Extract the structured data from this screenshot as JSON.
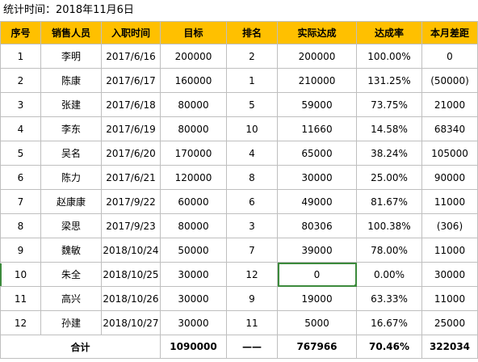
{
  "stat_line": "统计时间：2018年11月6日",
  "headers": [
    "序号",
    "销售人员",
    "入职时间",
    "目标",
    "排名",
    "实际达成",
    "达成率",
    "本月差距"
  ],
  "rows": [
    [
      "1",
      "李明",
      "2017/6/16",
      "200000",
      "2",
      "200000",
      "100.00%",
      "0"
    ],
    [
      "2",
      "陈康",
      "2017/6/17",
      "160000",
      "1",
      "210000",
      "131.25%",
      "(50000)"
    ],
    [
      "3",
      "张建",
      "2017/6/18",
      "80000",
      "5",
      "59000",
      "73.75%",
      "21000"
    ],
    [
      "4",
      "李东",
      "2017/6/19",
      "80000",
      "10",
      "11660",
      "14.58%",
      "68340"
    ],
    [
      "5",
      "吴名",
      "2017/6/20",
      "170000",
      "4",
      "65000",
      "38.24%",
      "105000"
    ],
    [
      "6",
      "陈力",
      "2017/6/21",
      "120000",
      "8",
      "30000",
      "25.00%",
      "90000"
    ],
    [
      "7",
      "赵康康",
      "2017/9/22",
      "60000",
      "6",
      "49000",
      "81.67%",
      "11000"
    ],
    [
      "8",
      "梁思",
      "2017/9/23",
      "80000",
      "3",
      "80306",
      "100.38%",
      "(306)"
    ],
    [
      "9",
      "魏敏",
      "2018/10/24",
      "50000",
      "7",
      "39000",
      "78.00%",
      "11000"
    ],
    [
      "10",
      "朱全",
      "2018/10/25",
      "30000",
      "12",
      "0",
      "0.00%",
      "30000"
    ],
    [
      "11",
      "高兴",
      "2018/10/26",
      "30000",
      "9",
      "19000",
      "63.33%",
      "11000"
    ],
    [
      "12",
      "孙建",
      "2018/10/27",
      "30000",
      "11",
      "5000",
      "16.67%",
      "25000"
    ]
  ],
  "total": {
    "label": "合计",
    "target": "1090000",
    "rank": "——",
    "actual": "767966",
    "rate": "70.46%",
    "gap": "322034"
  },
  "colors": {
    "header_bg": "#ffc000",
    "negative": "#c00000",
    "selection": "#3c8a3c"
  }
}
